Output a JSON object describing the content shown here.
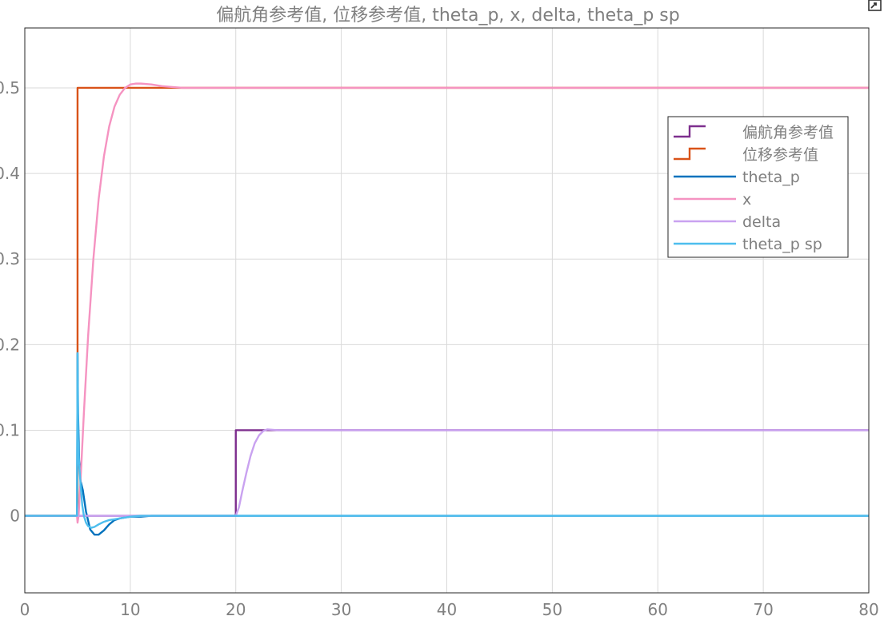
{
  "export_icon": "export-icon",
  "chart_data": {
    "type": "line",
    "title": "偏航角参考值, 位移参考值, theta_p, x, delta, theta_p sp",
    "xlabel": "",
    "ylabel": "",
    "xlim": [
      0,
      80
    ],
    "ylim": [
      -0.09,
      0.57
    ],
    "xticks": [
      0,
      10,
      20,
      30,
      40,
      50,
      60,
      70,
      80
    ],
    "yticks": [
      0,
      0.1,
      0.2,
      0.3,
      0.4,
      0.5
    ],
    "ytick_labels": [
      "0",
      "0.1",
      "0.2",
      "0.3",
      "0.4",
      "0.5"
    ],
    "grid": true,
    "legend_position": "right",
    "colors": {
      "grid": "#d9d9d9",
      "axes": "#262626",
      "tick_text": "#808080"
    },
    "series": [
      {
        "name": "偏航角参考值",
        "color": "#7e2f8e",
        "style": "step",
        "x": [
          0,
          20,
          20,
          80
        ],
        "y": [
          0,
          0,
          0.1,
          0.1
        ]
      },
      {
        "name": "位移参考值",
        "color": "#d95319",
        "style": "step",
        "x": [
          0,
          5,
          5,
          80
        ],
        "y": [
          0,
          0,
          0.5,
          0.5
        ]
      },
      {
        "name": "theta_p",
        "color": "#0072bd",
        "style": "line",
        "x": [
          0,
          4.95,
          5.0,
          5.05,
          5.15,
          5.3,
          5.5,
          5.8,
          6.2,
          6.6,
          7.0,
          7.5,
          8.0,
          8.5,
          9.0,
          9.5,
          10,
          11,
          12,
          14,
          80
        ],
        "y": [
          0,
          0,
          0.19,
          0.12,
          0.065,
          0.04,
          0.03,
          0.005,
          -0.016,
          -0.022,
          -0.022,
          -0.017,
          -0.01,
          -0.005,
          -0.003,
          -0.002,
          -0.001,
          -0.001,
          0,
          0,
          0
        ]
      },
      {
        "name": "x",
        "color": "#f593c1",
        "style": "line",
        "x": [
          0,
          4.95,
          5.0,
          5.1,
          5.3,
          5.6,
          6.0,
          6.5,
          7.0,
          7.5,
          8.0,
          8.5,
          9.0,
          9.5,
          10.0,
          10.5,
          11.0,
          12.0,
          13.0,
          14.0,
          15.0,
          17.0,
          20.0,
          80
        ],
        "y": [
          0,
          0,
          -0.008,
          0.0,
          0.045,
          0.12,
          0.21,
          0.3,
          0.37,
          0.42,
          0.455,
          0.478,
          0.492,
          0.5,
          0.504,
          0.505,
          0.505,
          0.504,
          0.502,
          0.501,
          0.5,
          0.5,
          0.5,
          0.5
        ]
      },
      {
        "name": "delta",
        "color": "#c9a2f0",
        "style": "line",
        "x": [
          0,
          19.95,
          20.0,
          20.3,
          20.6,
          21.0,
          21.4,
          21.8,
          22.2,
          22.6,
          23.0,
          23.5,
          24.0,
          25.0,
          80
        ],
        "y": [
          0,
          0,
          0.0,
          0.01,
          0.028,
          0.05,
          0.07,
          0.085,
          0.094,
          0.099,
          0.101,
          0.1005,
          0.1,
          0.1,
          0.1
        ]
      },
      {
        "name": "theta_p sp",
        "color": "#4dbeee",
        "style": "line",
        "x": [
          0,
          4.95,
          5.0,
          5.05,
          5.15,
          5.3,
          5.45,
          5.6,
          5.8,
          6.0,
          6.3,
          6.6,
          7.0,
          7.5,
          8.0,
          8.5,
          9.0,
          10,
          11,
          12,
          14,
          80
        ],
        "y": [
          0,
          0,
          0.19,
          0.09,
          0.06,
          0.035,
          0.012,
          0.0,
          -0.008,
          -0.012,
          -0.014,
          -0.013,
          -0.01,
          -0.007,
          -0.005,
          -0.004,
          -0.003,
          -0.001,
          0,
          0,
          0,
          0
        ]
      }
    ]
  }
}
